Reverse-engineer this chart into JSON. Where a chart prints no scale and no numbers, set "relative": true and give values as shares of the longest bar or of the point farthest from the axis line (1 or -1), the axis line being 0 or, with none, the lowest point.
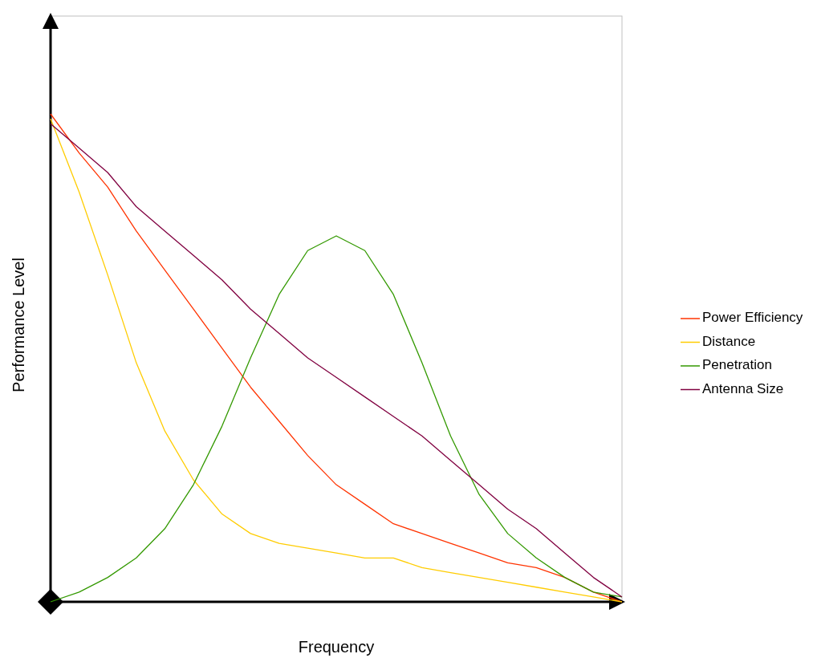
{
  "chart_data": {
    "type": "line",
    "relative": true,
    "xlabel": "Frequency",
    "ylabel": "Performance Level",
    "legend": "right",
    "marker": "none",
    "categories": [
      null,
      null,
      null,
      null,
      null,
      null,
      null,
      null,
      null,
      null,
      null,
      null,
      null,
      null,
      null,
      null,
      null,
      null,
      null,
      null,
      null
    ],
    "series": [
      {
        "name": "Power Efficiency",
        "color": "#ff3300",
        "values": [
          1.0,
          0.92,
          0.85,
          0.76,
          0.68,
          0.6,
          0.52,
          0.44,
          0.37,
          0.3,
          0.24,
          0.2,
          0.16,
          0.14,
          0.12,
          0.1,
          0.08,
          0.07,
          0.05,
          0.02,
          0.0
        ]
      },
      {
        "name": "Distance",
        "color": "#ffcc00",
        "values": [
          0.99,
          0.84,
          0.67,
          0.49,
          0.35,
          0.25,
          0.18,
          0.14,
          0.12,
          0.11,
          0.1,
          0.09,
          0.09,
          0.07,
          0.06,
          0.05,
          0.04,
          0.03,
          0.02,
          0.01,
          0.0
        ]
      },
      {
        "name": "Penetration",
        "color": "#339900",
        "values": [
          0.0,
          0.02,
          0.05,
          0.09,
          0.15,
          0.24,
          0.36,
          0.5,
          0.63,
          0.72,
          0.75,
          0.72,
          0.63,
          0.49,
          0.34,
          0.22,
          0.14,
          0.09,
          0.05,
          0.02,
          0.01
        ]
      },
      {
        "name": "Antenna Size",
        "color": "#800040",
        "values": [
          0.98,
          0.93,
          0.88,
          0.81,
          0.76,
          0.71,
          0.66,
          0.6,
          0.55,
          0.5,
          0.46,
          0.42,
          0.38,
          0.34,
          0.29,
          0.24,
          0.19,
          0.15,
          0.1,
          0.05,
          0.01
        ]
      }
    ]
  }
}
